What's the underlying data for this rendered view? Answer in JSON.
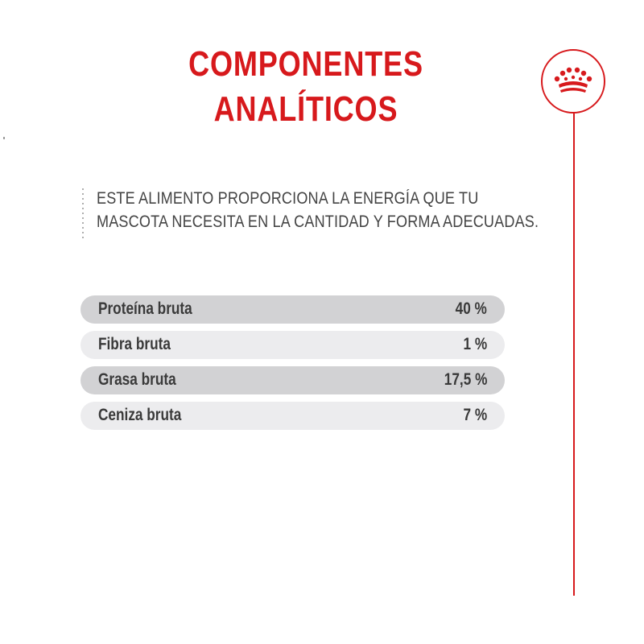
{
  "title": {
    "line1": "COMPONENTES",
    "line2": "ANALÍTICOS"
  },
  "logo": {
    "icon": "crown-icon"
  },
  "intro": {
    "line1": "ESTE ALIMENTO PROPORCIONA LA ENERGÍA QUE TU",
    "line2": "MASCOTA NECESITA EN LA CANTIDAD Y FORMA ADECUADAS."
  },
  "components": [
    {
      "label": "Proteína bruta",
      "value": "40 %"
    },
    {
      "label": "Fibra bruta",
      "value": "1 %"
    },
    {
      "label": "Grasa bruta",
      "value": "17,5 %"
    },
    {
      "label": "Ceniza bruta",
      "value": "7 %"
    }
  ],
  "colors": {
    "accent": "#d7191c",
    "row_dark": "#d2d2d4",
    "row_light": "#ececee",
    "text": "#3a3a3a"
  }
}
